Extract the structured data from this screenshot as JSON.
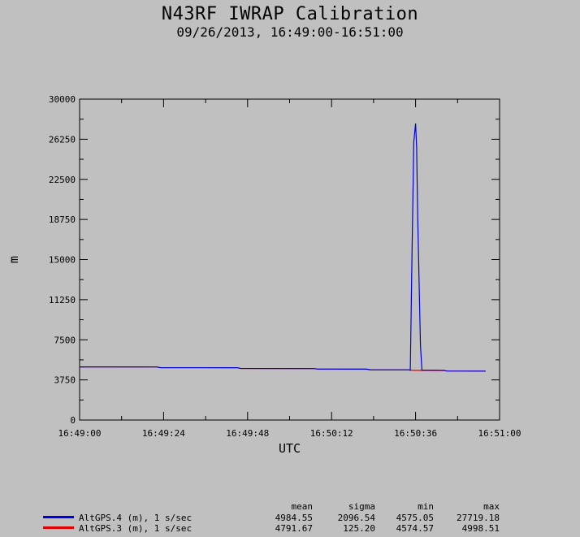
{
  "title": "N43RF IWRAP Calibration",
  "subtitle": "09/26/2013, 16:49:00-16:51:00",
  "chart_data": {
    "type": "line",
    "xlabel": "UTC",
    "ylabel": "m",
    "ylim": [
      0,
      30000
    ],
    "xlim": [
      "16:49:00",
      "16:51:00"
    ],
    "x_ticks": [
      "16:49:00",
      "16:49:24",
      "16:49:48",
      "16:50:12",
      "16:50:36",
      "16:51:00"
    ],
    "y_ticks": [
      "0",
      "3750",
      "7500",
      "11250",
      "15000",
      "18750",
      "22500",
      "26250",
      "30000"
    ],
    "grid": false,
    "series": [
      {
        "name": "AltGPS.4 (m), 1 s/sec",
        "color": "#0000e0",
        "points": [
          [
            0,
            4970
          ],
          [
            22,
            4960
          ],
          [
            23,
            4900
          ],
          [
            45,
            4890
          ],
          [
            46,
            4820
          ],
          [
            67,
            4810
          ],
          [
            68,
            4760
          ],
          [
            82,
            4755
          ],
          [
            83,
            4700
          ],
          [
            94,
            4690
          ],
          [
            94.5,
            4650
          ],
          [
            95,
            16000
          ],
          [
            95.5,
            26000
          ],
          [
            96,
            27719
          ],
          [
            96.3,
            25500
          ],
          [
            96.6,
            19000
          ],
          [
            97,
            13000
          ],
          [
            97.4,
            7000
          ],
          [
            97.8,
            4660
          ],
          [
            104,
            4650
          ],
          [
            105,
            4580
          ],
          [
            116,
            4575
          ]
        ]
      },
      {
        "name": "AltGPS.3 (m), 1 s/sec",
        "color": "#e00000",
        "points": [
          [
            0,
            4970
          ],
          [
            22,
            4960
          ],
          [
            23,
            4900
          ],
          [
            45,
            4890
          ],
          [
            46,
            4820
          ],
          [
            67,
            4810
          ],
          [
            68,
            4760
          ],
          [
            82,
            4755
          ],
          [
            83,
            4700
          ],
          [
            94,
            4690
          ],
          [
            95,
            4650
          ],
          [
            96,
            4640
          ],
          [
            104,
            4620
          ],
          [
            105,
            4580
          ],
          [
            116,
            4575
          ]
        ]
      }
    ]
  },
  "legend": {
    "headers": [
      "mean",
      "sigma",
      "min",
      "max"
    ],
    "rows": [
      {
        "label": "AltGPS.4 (m), 1 s/sec",
        "color": "#0000e0",
        "values": [
          "4984.55",
          "2096.54",
          "4575.05",
          "27719.18"
        ]
      },
      {
        "label": "AltGPS.3 (m), 1 s/sec",
        "color": "#e00000",
        "values": [
          "4791.67",
          "125.20",
          "4574.57",
          "4998.51"
        ]
      }
    ]
  }
}
